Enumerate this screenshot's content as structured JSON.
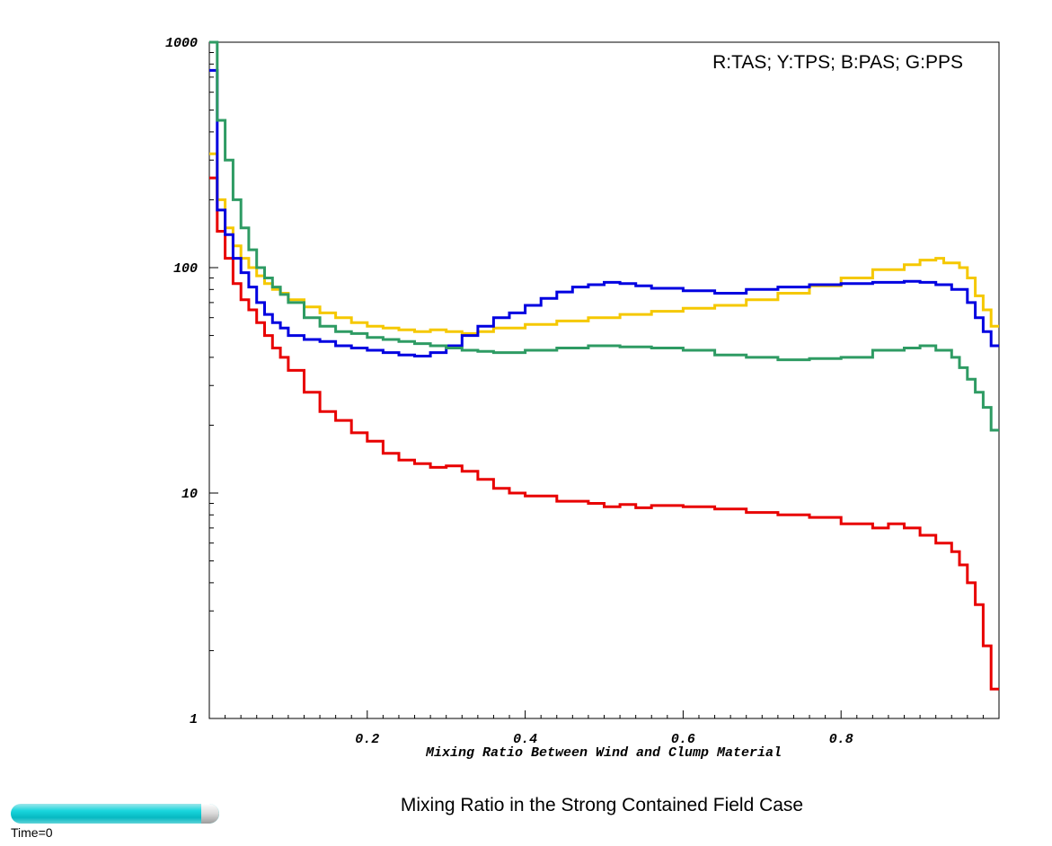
{
  "chart_data": {
    "type": "line",
    "title": "Mixing Ratio in the Strong Contained Field Case",
    "legend_text": "R:TAS; Y:TPS; B:PAS; G:PPS",
    "legend_position": "top-right",
    "xlabel": "Mixing Ratio Between Wind and Clump Material",
    "ylabel": "",
    "xlim": [
      0,
      1
    ],
    "ylim": [
      1,
      1000
    ],
    "yscale": "log",
    "step": true,
    "grid": false,
    "x_ticks": [
      {
        "value": 0.2,
        "label": "0.2"
      },
      {
        "value": 0.4,
        "label": "0.4"
      },
      {
        "value": 0.6,
        "label": "0.6"
      },
      {
        "value": 0.8,
        "label": "0.8"
      }
    ],
    "y_ticks": [
      {
        "value": 1,
        "label": "1"
      },
      {
        "value": 10,
        "label": "10"
      },
      {
        "value": 100,
        "label": "100"
      },
      {
        "value": 1000,
        "label": "1000"
      }
    ],
    "series": [
      {
        "name": "R:TAS",
        "color": "#e80000",
        "x": [
          0.01,
          0.02,
          0.03,
          0.04,
          0.05,
          0.06,
          0.07,
          0.08,
          0.09,
          0.1,
          0.12,
          0.14,
          0.16,
          0.18,
          0.2,
          0.22,
          0.24,
          0.26,
          0.28,
          0.3,
          0.32,
          0.34,
          0.36,
          0.38,
          0.4,
          0.44,
          0.48,
          0.5,
          0.52,
          0.54,
          0.56,
          0.6,
          0.64,
          0.68,
          0.72,
          0.76,
          0.8,
          0.84,
          0.86,
          0.88,
          0.9,
          0.92,
          0.94,
          0.95,
          0.96,
          0.97,
          0.98,
          0.99,
          1.0
        ],
        "values": [
          250,
          145,
          110,
          85,
          72,
          65,
          57,
          50,
          44,
          40,
          35,
          28,
          23,
          21,
          18.5,
          17,
          15,
          14,
          13.5,
          13,
          13.2,
          12.5,
          11.5,
          10.5,
          10,
          9.7,
          9.2,
          9,
          8.7,
          8.9,
          8.6,
          8.8,
          8.7,
          8.5,
          8.2,
          8,
          7.8,
          7.3,
          7.0,
          7.3,
          7.0,
          6.5,
          6,
          5.5,
          4.8,
          4.0,
          3.2,
          2.1,
          1.35
        ]
      },
      {
        "name": "Y:TPS",
        "color": "#f5c800",
        "x": [
          0.01,
          0.02,
          0.03,
          0.04,
          0.05,
          0.06,
          0.07,
          0.08,
          0.09,
          0.1,
          0.12,
          0.14,
          0.16,
          0.18,
          0.2,
          0.22,
          0.24,
          0.26,
          0.28,
          0.3,
          0.32,
          0.34,
          0.36,
          0.4,
          0.44,
          0.48,
          0.52,
          0.56,
          0.6,
          0.64,
          0.68,
          0.72,
          0.76,
          0.8,
          0.84,
          0.88,
          0.9,
          0.92,
          0.93,
          0.95,
          0.96,
          0.97,
          0.98,
          0.99,
          1.0
        ],
        "values": [
          320,
          200,
          150,
          125,
          110,
          100,
          92,
          85,
          80,
          77,
          72,
          67,
          63,
          60,
          57,
          55,
          54,
          53,
          52,
          53,
          52,
          51,
          52,
          54,
          56,
          58,
          60,
          62,
          64,
          66,
          68,
          72,
          77,
          83,
          90,
          98,
          103,
          108,
          110,
          105,
          100,
          90,
          75,
          65,
          55
        ]
      },
      {
        "name": "B:PAS",
        "color": "#0000e0",
        "x": [
          0.01,
          0.02,
          0.03,
          0.04,
          0.05,
          0.06,
          0.07,
          0.08,
          0.09,
          0.1,
          0.12,
          0.14,
          0.16,
          0.18,
          0.2,
          0.22,
          0.24,
          0.26,
          0.28,
          0.3,
          0.32,
          0.34,
          0.36,
          0.38,
          0.4,
          0.42,
          0.44,
          0.46,
          0.48,
          0.5,
          0.52,
          0.54,
          0.56,
          0.6,
          0.64,
          0.68,
          0.72,
          0.76,
          0.8,
          0.84,
          0.88,
          0.9,
          0.92,
          0.94,
          0.96,
          0.97,
          0.98,
          0.99,
          1.0
        ],
        "values": [
          750,
          180,
          140,
          110,
          95,
          82,
          70,
          62,
          57,
          54,
          50,
          48,
          47,
          45,
          44,
          43,
          42,
          41,
          40.5,
          42,
          45,
          50,
          55,
          60,
          63,
          68,
          73,
          78,
          82,
          84,
          86,
          85,
          83,
          81,
          79,
          77,
          80,
          82,
          84,
          85,
          86,
          87,
          86,
          84,
          80,
          70,
          60,
          52,
          45
        ]
      },
      {
        "name": "G:PPS",
        "color": "#2e9b63",
        "x": [
          0.01,
          0.02,
          0.03,
          0.04,
          0.05,
          0.06,
          0.07,
          0.08,
          0.09,
          0.1,
          0.12,
          0.14,
          0.16,
          0.18,
          0.2,
          0.22,
          0.24,
          0.26,
          0.28,
          0.3,
          0.32,
          0.34,
          0.36,
          0.4,
          0.44,
          0.48,
          0.52,
          0.56,
          0.6,
          0.64,
          0.68,
          0.72,
          0.76,
          0.8,
          0.84,
          0.88,
          0.9,
          0.92,
          0.94,
          0.95,
          0.96,
          0.97,
          0.98,
          0.99,
          1.0
        ],
        "values": [
          1000,
          450,
          300,
          200,
          150,
          120,
          100,
          90,
          82,
          76,
          70,
          60,
          55,
          52,
          51,
          49,
          48,
          47,
          46,
          45,
          44,
          43,
          42.5,
          42,
          43,
          44,
          45,
          44.5,
          44,
          43,
          41,
          40,
          39,
          39.5,
          40,
          43,
          44,
          45,
          43,
          40,
          36,
          32,
          28,
          24,
          19
        ]
      }
    ]
  },
  "time_label": "Time=0",
  "time_fraction": 0.0
}
